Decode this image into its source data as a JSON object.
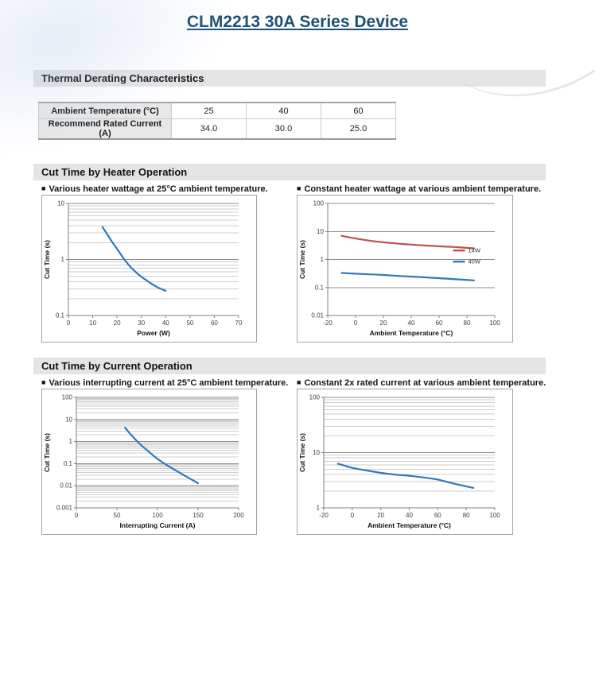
{
  "page": {
    "title": "CLM2213 30A Series Device"
  },
  "theme": {
    "title_color": "#1d5174",
    "section_bar_bg": "#e4e4e4",
    "series_blue": "#2e79bd",
    "series_red": "#c0504d",
    "grid_major": "#8c8c8c",
    "grid_minor": "#cdcdcd",
    "axis_color": "#7f7f7f"
  },
  "glyphs": {
    "bullet": "■"
  },
  "sections": {
    "thermal": {
      "heading": "Thermal Derating Characteristics"
    },
    "heater": {
      "heading": "Cut Time by Heater Operation",
      "left_caption": "Various heater wattage at 25°C ambient temperature.",
      "right_caption": "Constant heater wattage at various ambient temperature."
    },
    "current": {
      "heading": "Cut Time by Current Operation",
      "left_caption": "Various interrupting current at 25°C ambient temperature.",
      "right_caption": "Constant 2x rated current at various ambient temperature."
    }
  },
  "derating_table": {
    "rows": [
      {
        "label": "Ambient Temperature (°C)",
        "values": [
          "25",
          "40",
          "60"
        ]
      },
      {
        "label": "Recommend Rated Current (A)",
        "values": [
          "34.0",
          "30.0",
          "25.0"
        ]
      }
    ]
  },
  "chart_data": [
    {
      "type": "line",
      "title": "Various heater wattage at 25°C ambient temperature.",
      "xlabel": "Power (W)",
      "ylabel": "Cut Time (s)",
      "xlim": [
        0,
        70
      ],
      "x_ticks": [
        0,
        10,
        20,
        30,
        40,
        50,
        60,
        70
      ],
      "y_scale": "log",
      "ylim": [
        0.1,
        10
      ],
      "y_ticks": [
        0.1,
        1,
        10
      ],
      "minor_gridlines": true,
      "legend": false,
      "series": [
        {
          "name": "",
          "color": "#2e79bd",
          "points": [
            [
              14,
              3.8
            ],
            [
              16,
              2.8
            ],
            [
              18,
              2.05
            ],
            [
              20,
              1.55
            ],
            [
              22,
              1.15
            ],
            [
              24,
              0.88
            ],
            [
              26,
              0.7
            ],
            [
              28,
              0.58
            ],
            [
              30,
              0.49
            ],
            [
              33,
              0.4
            ],
            [
              36,
              0.33
            ],
            [
              40,
              0.275
            ]
          ]
        }
      ]
    },
    {
      "type": "line",
      "title": "Constant heater wattage at various ambient temperature.",
      "xlabel": "Ambient Temperature (°C)",
      "ylabel": "Cut Time (s)",
      "xlim": [
        -20,
        100
      ],
      "x_ticks": [
        -20,
        0,
        20,
        40,
        60,
        80,
        100
      ],
      "y_scale": "log",
      "ylim": [
        0.01,
        100
      ],
      "y_ticks": [
        0.01,
        0.1,
        1,
        10,
        100
      ],
      "minor_gridlines": false,
      "legend": true,
      "series": [
        {
          "name": "14W",
          "color": "#c0504d",
          "points": [
            [
              -10,
              7.0
            ],
            [
              0,
              5.6
            ],
            [
              10,
              4.7
            ],
            [
              20,
              4.1
            ],
            [
              30,
              3.7
            ],
            [
              40,
              3.4
            ],
            [
              50,
              3.15
            ],
            [
              60,
              2.95
            ],
            [
              70,
              2.8
            ],
            [
              85,
              2.5
            ]
          ]
        },
        {
          "name": "40W",
          "color": "#2e79bd",
          "points": [
            [
              -10,
              0.33
            ],
            [
              0,
              0.31
            ],
            [
              10,
              0.295
            ],
            [
              20,
              0.28
            ],
            [
              30,
              0.26
            ],
            [
              40,
              0.245
            ],
            [
              50,
              0.23
            ],
            [
              60,
              0.215
            ],
            [
              70,
              0.2
            ],
            [
              85,
              0.18
            ]
          ]
        }
      ]
    },
    {
      "type": "line",
      "title": "Various interrupting current at 25°C ambient temperature.",
      "xlabel": "Interrupting Current (A)",
      "ylabel": "Cut Time (s)",
      "xlim": [
        0,
        200
      ],
      "x_ticks": [
        0,
        50,
        100,
        150,
        200
      ],
      "y_scale": "log",
      "ylim": [
        0.001,
        100
      ],
      "y_ticks": [
        0.001,
        0.01,
        0.1,
        1,
        10,
        100
      ],
      "minor_gridlines": true,
      "legend": false,
      "series": [
        {
          "name": "",
          "color": "#2e79bd",
          "points": [
            [
              60,
              4.3
            ],
            [
              65,
              2.55
            ],
            [
              70,
              1.6
            ],
            [
              75,
              1.02
            ],
            [
              80,
              0.68
            ],
            [
              85,
              0.47
            ],
            [
              90,
              0.33
            ],
            [
              95,
              0.23
            ],
            [
              100,
              0.165
            ],
            [
              110,
              0.093
            ],
            [
              120,
              0.056
            ],
            [
              130,
              0.034
            ],
            [
              140,
              0.021
            ],
            [
              150,
              0.013
            ]
          ]
        }
      ]
    },
    {
      "type": "line",
      "title": "Constant 2x rated current at various ambient temperature.",
      "xlabel": "Ambient Temperature (°C)",
      "ylabel": "Cut Time (s)",
      "xlim": [
        -20,
        100
      ],
      "x_ticks": [
        -20,
        0,
        20,
        40,
        60,
        80,
        100
      ],
      "y_scale": "log",
      "ylim": [
        1,
        100
      ],
      "y_ticks": [
        1,
        10,
        100
      ],
      "minor_gridlines": true,
      "legend": false,
      "series": [
        {
          "name": "",
          "color": "#2e79bd",
          "points": [
            [
              -10,
              6.3
            ],
            [
              0,
              5.3
            ],
            [
              10,
              4.75
            ],
            [
              20,
              4.3
            ],
            [
              30,
              4.0
            ],
            [
              40,
              3.8
            ],
            [
              50,
              3.55
            ],
            [
              60,
              3.25
            ],
            [
              70,
              2.8
            ],
            [
              85,
              2.3
            ]
          ]
        }
      ]
    }
  ]
}
